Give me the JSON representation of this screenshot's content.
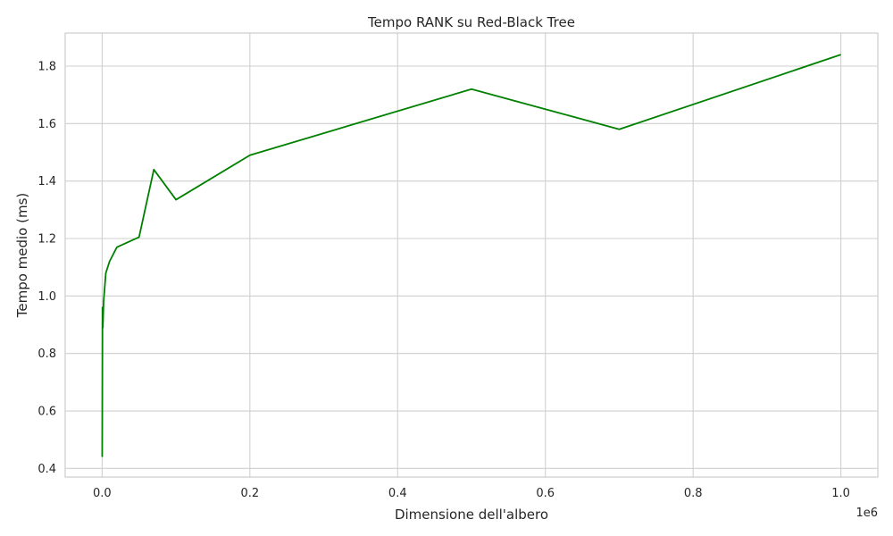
{
  "chart_data": {
    "type": "line",
    "title": "Tempo RANK su Red-Black Tree",
    "xlabel": "Dimensione dell'albero",
    "ylabel": "Tempo medio (ms)",
    "x_offset_label": "1e6",
    "xlim": [
      -50000,
      1050000
    ],
    "ylim": [
      0.37,
      1.915
    ],
    "x_ticks": [
      0,
      200000,
      400000,
      600000,
      800000,
      1000000
    ],
    "x_tick_labels": [
      "0.0",
      "0.2",
      "0.4",
      "0.6",
      "0.8",
      "1.0"
    ],
    "y_ticks": [
      0.4,
      0.6,
      0.8,
      1.0,
      1.2,
      1.4,
      1.6,
      1.8
    ],
    "y_tick_labels": [
      "0.4",
      "0.6",
      "0.8",
      "1.0",
      "1.2",
      "1.4",
      "1.6",
      "1.8"
    ],
    "grid": true,
    "series": [
      {
        "name": "",
        "color": "#008000",
        "x": [
          100,
          500,
          1000,
          2000,
          5000,
          10000,
          20000,
          50000,
          70000,
          100000,
          200000,
          500000,
          700000,
          1000000
        ],
        "y": [
          0.44,
          0.96,
          0.89,
          0.98,
          1.08,
          1.12,
          1.17,
          1.205,
          1.44,
          1.335,
          1.49,
          1.72,
          1.58,
          1.84
        ]
      }
    ]
  }
}
